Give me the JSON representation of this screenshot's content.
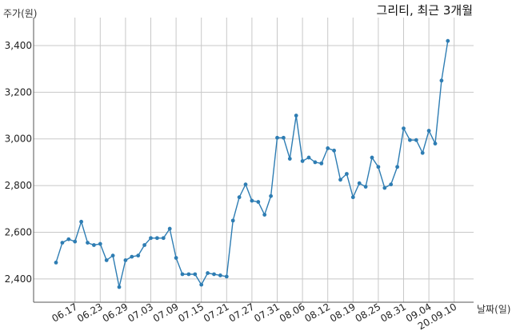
{
  "chart_data": {
    "type": "line",
    "title": "그리티, 최근 3개월",
    "ylabel": "주가(원)",
    "xlabel": "날짜(일)",
    "ylim": [
      2300,
      3520
    ],
    "yticks": [
      2400,
      2600,
      2800,
      3000,
      3200,
      3400
    ],
    "ytick_labels": [
      "2,400",
      "2,600",
      "2,800",
      "3,000",
      "3,200",
      "3,400"
    ],
    "xticks": [
      "06.17",
      "06.23",
      "06.29",
      "07.03",
      "07.09",
      "07.15",
      "07.21",
      "07.27",
      "07.31",
      "08.06",
      "08.12",
      "08.19",
      "08.25",
      "08.31",
      "09.04",
      "20.09.10"
    ],
    "xtick_index": [
      3,
      7,
      11,
      15,
      19,
      23,
      27,
      31,
      35,
      39,
      43,
      47,
      51,
      55,
      59,
      63
    ],
    "grid": true,
    "color": "#2e7db3",
    "series": [
      {
        "values": [
          2470,
          2555,
          2570,
          2560,
          2645,
          2555,
          2545,
          2550,
          2480,
          2500,
          2365,
          2480,
          2495,
          2500,
          2545,
          2575,
          2575,
          2575,
          2615,
          2490,
          2420,
          2420,
          2420,
          2375,
          2425,
          2420,
          2415,
          2410,
          2650,
          2750,
          2805,
          2735,
          2730,
          2675,
          2755,
          3005,
          3005,
          2915,
          3100,
          2905,
          2920,
          2900,
          2895,
          2960,
          2950,
          2825,
          2850,
          2750,
          2810,
          2795,
          2920,
          2880,
          2790,
          2805,
          2880,
          3045,
          2995,
          2995,
          2940,
          3035,
          2980,
          3250,
          3420
        ]
      }
    ]
  }
}
